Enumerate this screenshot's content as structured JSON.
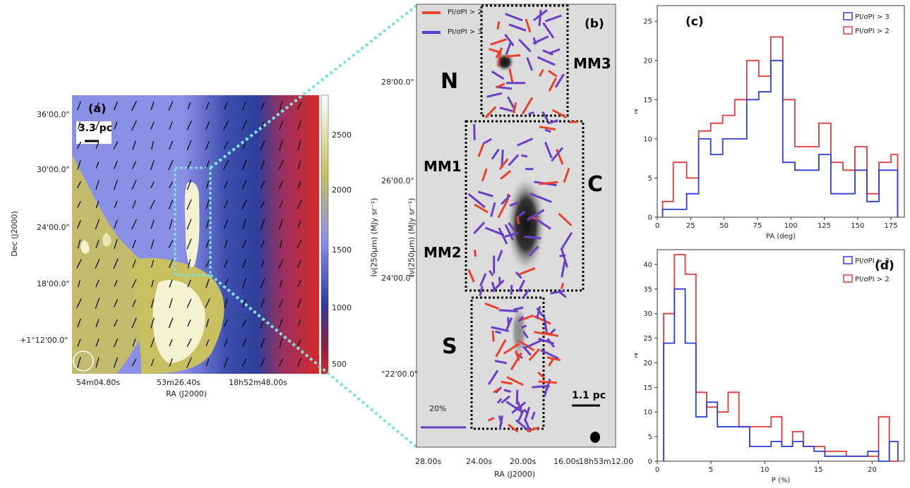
{
  "panel_a": {
    "label": "(a)",
    "scalebar": "3.3 pc",
    "ytick_labels": [
      "36'00.0\"",
      "30'00.0\"",
      "24'00.0\"",
      "18'00.0\"",
      "+1°12'00.0\""
    ],
    "xtick_labels": [
      "54m04.80s",
      "53m26.40s",
      "18h52m48.00s"
    ],
    "xlabel": "RA (J2000)",
    "ylabel": "Dec (J2000)",
    "colorbar_ticks": [
      "2500",
      "2000",
      "1500",
      "1000",
      "500"
    ],
    "colorbar_label": "Iν(250μm) (MJy sr⁻¹)",
    "colors": {
      "low": "#d62a2a",
      "mid_low": "#2e3f9a",
      "mid": "#8a90e6",
      "high": "#c8c060",
      "peak": "#ffffff"
    }
  },
  "panel_b": {
    "label": "(b)",
    "legend": [
      "PI/σPI > 2",
      "PI/σPI > 3"
    ],
    "regions": [
      "N",
      "C",
      "S",
      "MM1",
      "MM2",
      "MM3"
    ],
    "scalebar": "1.1 pc",
    "vector_scale": "20%",
    "ytick_labels": [
      "28'00.0\"",
      "26'00.0\"",
      "24'00.0\"",
      "°22'00.0\""
    ],
    "xtick_labels": [
      "28.00s",
      "24.00s",
      "20.00s",
      "16.00s",
      "18h53m12.00"
    ],
    "xlabel": "RA (J2000)",
    "colors": {
      "snr2": "#e8412c",
      "snr3": "#6a3fc4",
      "connector": "#7fe0e0"
    }
  },
  "chart_data": [
    {
      "type": "histogram",
      "label": "(c)",
      "xlabel": "PA (deg)",
      "ylabel": "N",
      "xlim": [
        0,
        185
      ],
      "ylim": [
        0,
        27
      ],
      "xticks": [
        0,
        25,
        50,
        75,
        100,
        125,
        150,
        175
      ],
      "yticks": [
        0,
        5,
        10,
        15,
        20,
        25
      ],
      "legend_placement": "top-right",
      "bin_edges": [
        4,
        12,
        22,
        31,
        40,
        49,
        58,
        67,
        76,
        85,
        94,
        103,
        112,
        121,
        130,
        139,
        148,
        157,
        166,
        175,
        180
      ],
      "series": [
        {
          "name": "PI/σPI > 3",
          "color": "#2b3fd6",
          "values": [
            1,
            1,
            3,
            10,
            8,
            10,
            10,
            15,
            16,
            20,
            7,
            6,
            6,
            8,
            3,
            3,
            6,
            2,
            6,
            6
          ]
        },
        {
          "name": "PI/σPI > 2",
          "color": "#e03a3a",
          "values": [
            2,
            7,
            5,
            11,
            12,
            13,
            15,
            20,
            18,
            23,
            15,
            9,
            9,
            12,
            7,
            6,
            9,
            3,
            7,
            8
          ]
        }
      ]
    },
    {
      "type": "histogram",
      "label": "(d)",
      "xlabel": "P (%)",
      "ylabel": "N",
      "xlim": [
        0,
        23
      ],
      "ylim": [
        0,
        43
      ],
      "xticks": [
        0,
        5,
        10,
        15,
        20
      ],
      "yticks": [
        0,
        5,
        10,
        15,
        20,
        25,
        30,
        35,
        40
      ],
      "legend_placement": "top-right",
      "bin_edges": [
        0.6,
        1.6,
        2.6,
        3.6,
        4.6,
        5.6,
        6.6,
        7.6,
        8.6,
        9.6,
        10.6,
        11.6,
        12.6,
        13.6,
        14.6,
        15.6,
        16.6,
        17.6,
        18.6,
        19.6,
        20.6,
        21.6,
        22.4
      ],
      "series": [
        {
          "name": "PI/σPI > 3",
          "color": "#2b3fd6",
          "values": [
            24,
            35,
            24,
            9,
            12,
            7,
            7,
            7,
            3,
            3,
            4,
            3,
            4,
            3,
            2,
            1,
            1,
            1,
            1,
            2,
            0,
            4
          ]
        },
        {
          "name": "PI/σPI > 2",
          "color": "#e03a3a",
          "values": [
            30,
            42,
            38,
            14,
            11,
            10,
            14,
            7,
            7,
            7,
            9,
            3,
            6,
            3,
            3,
            2,
            2,
            1,
            1,
            1,
            9,
            0
          ]
        }
      ]
    }
  ]
}
